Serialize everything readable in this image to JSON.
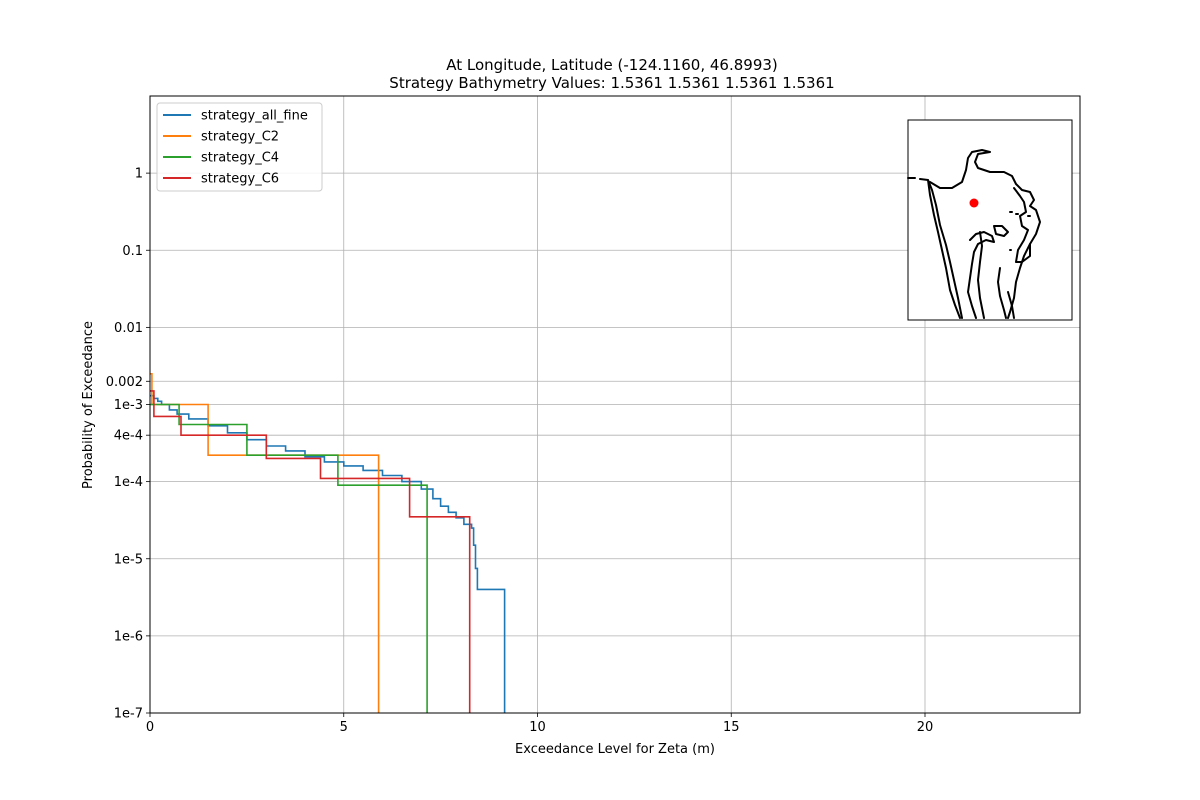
{
  "chart_data": {
    "type": "line",
    "title": "At Longitude, Latitude (-124.1160,  46.8993)",
    "subtitle": "Strategy Bathymetry Values:    1.5361    1.5361    1.5361    1.5361",
    "xlabel": "Exceedance Level for Zeta (m)",
    "ylabel": "Probability of Exceedance",
    "xlim": [
      0,
      24
    ],
    "ylim": [
      1e-07,
      10
    ],
    "yscale": "log",
    "grid": true,
    "legend_position": "upper-left",
    "x_ticks": [
      {
        "value": 0,
        "label": "0"
      },
      {
        "value": 5,
        "label": "5"
      },
      {
        "value": 10,
        "label": "10"
      },
      {
        "value": 15,
        "label": "15"
      },
      {
        "value": 20,
        "label": "20"
      }
    ],
    "y_ticks": [
      {
        "value": 1e-07,
        "label": "1e-7"
      },
      {
        "value": 1e-06,
        "label": "1e-6"
      },
      {
        "value": 1e-05,
        "label": "1e-5"
      },
      {
        "value": 0.0001,
        "label": "1e-4"
      },
      {
        "value": 0.0004,
        "label": "4e-4"
      },
      {
        "value": 0.001,
        "label": "1e-3"
      },
      {
        "value": 0.002,
        "label": "0.002"
      },
      {
        "value": 0.01,
        "label": "0.01"
      },
      {
        "value": 0.1,
        "label": "0.1"
      },
      {
        "value": 1,
        "label": "1"
      }
    ],
    "series": [
      {
        "name": "strategy_all_fine",
        "color": "#1f77b4",
        "x": [
          0,
          0.1,
          0.2,
          0.3,
          0.5,
          0.7,
          1.0,
          1.5,
          2.0,
          2.5,
          3.0,
          3.5,
          4.0,
          4.5,
          5.0,
          5.5,
          6.0,
          6.5,
          7.0,
          7.3,
          7.5,
          7.7,
          7.9,
          8.1,
          8.3,
          8.35,
          8.4,
          8.45,
          9.15,
          9.15
        ],
        "y": [
          0.0013,
          0.0012,
          0.0011,
          0.001,
          0.00085,
          0.00075,
          0.00065,
          0.00053,
          0.00043,
          0.00035,
          0.00029,
          0.00025,
          0.00021,
          0.00018,
          0.00016,
          0.00014,
          0.00012,
          0.0001,
          8e-05,
          6e-05,
          4.8e-05,
          4e-05,
          3.4e-05,
          2.8e-05,
          2.5e-05,
          1.5e-05,
          7.5e-06,
          4e-06,
          4e-06,
          1e-07
        ]
      },
      {
        "name": "strategy_C2",
        "color": "#ff7f0e",
        "x": [
          0,
          0.05,
          0.05,
          1.5,
          1.5,
          5.9,
          5.9
        ],
        "y": [
          0.0025,
          0.0025,
          0.001,
          0.001,
          0.00022,
          0.00022,
          1e-07
        ]
      },
      {
        "name": "strategy_C4",
        "color": "#2ca02c",
        "x": [
          0,
          0.75,
          0.75,
          2.5,
          2.5,
          4.85,
          4.85,
          7.15,
          7.15
        ],
        "y": [
          0.001,
          0.001,
          0.00055,
          0.00055,
          0.00022,
          0.00022,
          9e-05,
          9e-05,
          1e-07
        ]
      },
      {
        "name": "strategy_C6",
        "color": "#d62728",
        "x": [
          0,
          0.1,
          0.1,
          0.8,
          0.8,
          3.0,
          3.0,
          4.4,
          4.4,
          6.7,
          6.7,
          8.25,
          8.25
        ],
        "y": [
          0.0015,
          0.0015,
          0.0007,
          0.0007,
          0.0004,
          0.0004,
          0.0002,
          0.0002,
          0.00011,
          0.00011,
          3.5e-05,
          3.5e-05,
          1e-07
        ]
      }
    ]
  },
  "inset_map": {
    "marker_color": "#ff0000",
    "coastline_color": "#000000"
  }
}
